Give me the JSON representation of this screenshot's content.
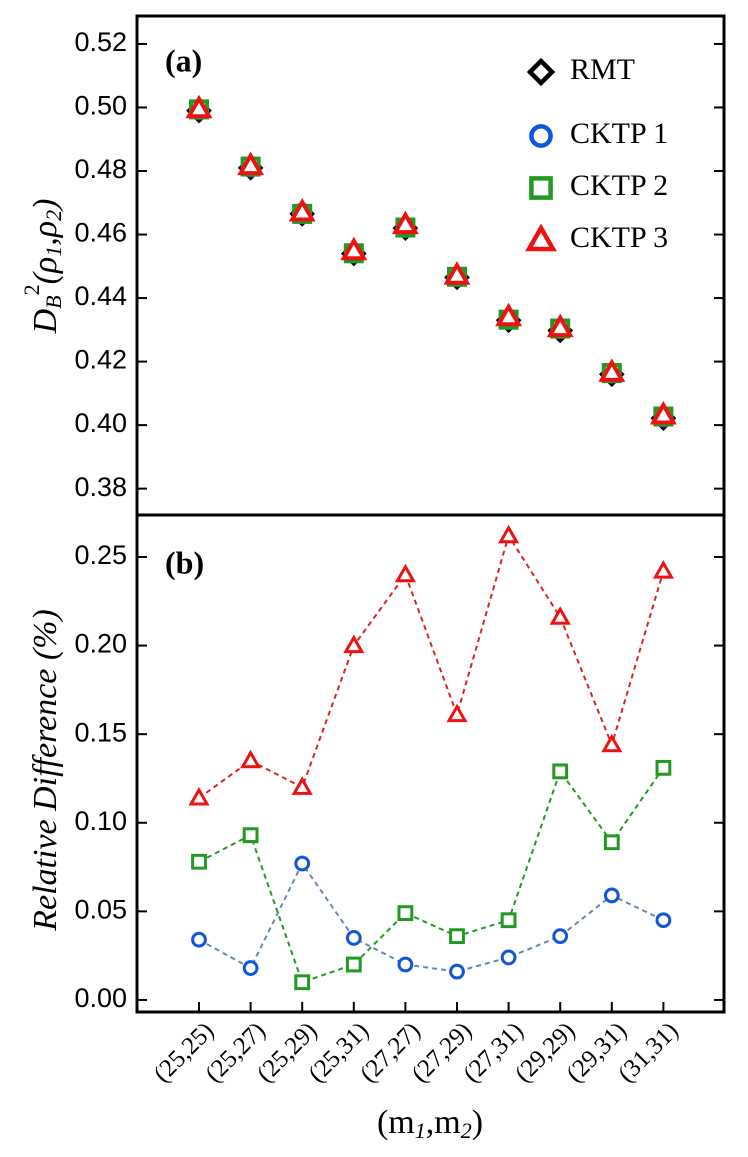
{
  "chart_data": [
    {
      "type": "scatter",
      "label": "(a)",
      "ylabel": [
        "D",
        "B",
        "2",
        "(ρ",
        "1",
        ",ρ",
        "2",
        ")"
      ],
      "ylim": [
        0.3717,
        0.5288
      ],
      "yticks": [
        0.38,
        {
          "value": 0.4,
          "label": "0.40"
        },
        0.42,
        0.44,
        0.46,
        0.48,
        {
          "value": 0.5,
          "label": "0.50"
        },
        0.52
      ],
      "legend": "upper right",
      "series": [
        {
          "name": "RMT",
          "color": "#000000",
          "marker": "diamond",
          "values": [
            0.499,
            0.481,
            0.4665,
            0.454,
            0.462,
            0.4465,
            0.433,
            0.4298,
            0.416,
            0.4022
          ]
        },
        {
          "name": "CKTP 1",
          "color": "#1155dd",
          "marker": "circle",
          "values": [
            0.4992,
            0.4811,
            0.4669,
            0.4542,
            0.4621,
            0.4466,
            0.4331,
            0.4302,
            0.4162,
            0.4024
          ]
        },
        {
          "name": "CKTP 2",
          "color": "#229922",
          "marker": "square",
          "values": [
            0.4994,
            0.4814,
            0.4665,
            0.4541,
            0.4622,
            0.4467,
            0.4332,
            0.4304,
            0.4164,
            0.4027
          ]
        },
        {
          "name": "CKTP 3",
          "color": "#ee1111",
          "marker": "triangle",
          "values": [
            0.4996,
            0.4817,
            0.4671,
            0.4549,
            0.4631,
            0.4472,
            0.4341,
            0.4307,
            0.4166,
            0.4032
          ]
        }
      ]
    },
    {
      "type": "line",
      "label": "(b)",
      "ylabel": "Relative Difference (%)",
      "xlabel": [
        "(m",
        "1",
        ",m",
        "2",
        ")"
      ],
      "categories": [
        "(25,25)",
        "(25,27)",
        "(25,29)",
        "(25,31)",
        "(27,27)",
        "(27,29)",
        "(27,31)",
        "(29,29)",
        "(29,31)",
        "(31,31)"
      ],
      "ylim": [
        -0.0068,
        0.2737
      ],
      "yticks": [
        {
          "value": 0,
          "label": "0.00"
        },
        0.05,
        {
          "value": 0.1,
          "label": "0.10"
        },
        0.15,
        {
          "value": 0.2,
          "label": "0.20"
        },
        0.25
      ],
      "series": [
        {
          "name": "CKTP 1",
          "color": "#1155dd",
          "line_color": "#6688b0",
          "marker": "circle",
          "values": [
            0.034,
            0.018,
            0.077,
            0.035,
            0.02,
            0.016,
            0.024,
            0.036,
            0.059,
            0.045
          ]
        },
        {
          "name": "CKTP 2",
          "color": "#229922",
          "line_color": "#229922",
          "marker": "square",
          "values": [
            0.078,
            0.093,
            0.01,
            0.02,
            0.049,
            0.036,
            0.045,
            0.129,
            0.089,
            0.131
          ]
        },
        {
          "name": "CKTP 3",
          "color": "#ee1111",
          "line_color": "#dd2222",
          "marker": "triangle",
          "values": [
            0.114,
            0.135,
            0.12,
            0.2,
            0.24,
            0.161,
            0.262,
            0.216,
            0.144,
            0.242
          ]
        }
      ]
    }
  ]
}
